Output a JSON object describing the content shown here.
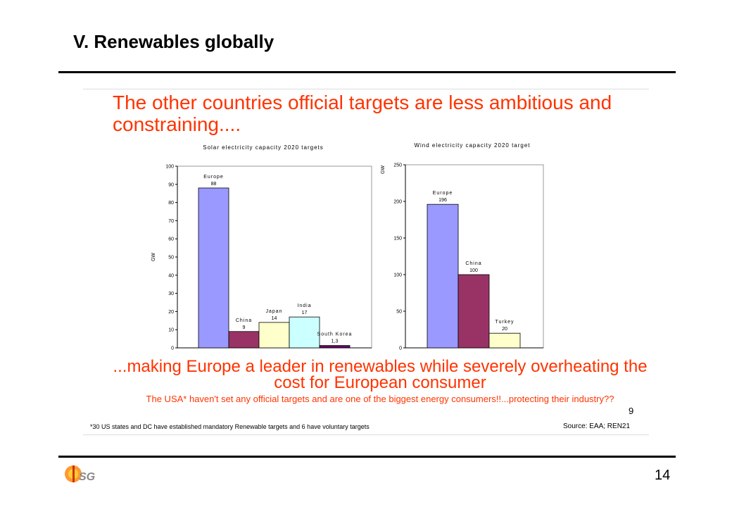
{
  "slide": {
    "title": "V. Renewables globally",
    "headline": "The other countries official targets are less ambitious and constraining....",
    "subheadline": "...making Europe a leader in renewables while severely overheating the cost for European consumer",
    "note": "The USA* haven't set any official targets and are one of the biggest energy consumers!!...protecting their industry??",
    "slide_mark": "9",
    "footnote": "*30 US states and DC have established mandatory Renewable targets and 6 have voluntary targets",
    "source": "Source: EAA; REN21",
    "page_number": "14",
    "logo_text": "USG"
  },
  "chart_data": [
    {
      "type": "bar",
      "title": "Solar electricity capacity 2020 targets",
      "ylabel": "GW",
      "ylim": [
        0,
        100
      ],
      "yticks": [
        0,
        10,
        20,
        30,
        40,
        50,
        60,
        70,
        80,
        90,
        100
      ],
      "categories": [
        "Europe",
        "China",
        "Japan",
        "India",
        "South Korea"
      ],
      "values": [
        88,
        9,
        14,
        17,
        1.3
      ],
      "value_labels": [
        "88",
        "9",
        "14",
        "17",
        "1,3"
      ],
      "colors": [
        "#9999ff",
        "#993366",
        "#ffffcc",
        "#ccffff",
        "#660066"
      ],
      "grid": false
    },
    {
      "type": "bar",
      "title": "Wind electricity capacity 2020 target",
      "ylabel": "GW",
      "ylim": [
        0,
        250
      ],
      "yticks": [
        0,
        50,
        100,
        150,
        200,
        250
      ],
      "categories": [
        "Europe",
        "China",
        "Turkey"
      ],
      "values": [
        196,
        100,
        20
      ],
      "value_labels": [
        "196",
        "100",
        "20"
      ],
      "colors": [
        "#9999ff",
        "#993366",
        "#ffffcc"
      ],
      "grid": false
    }
  ]
}
